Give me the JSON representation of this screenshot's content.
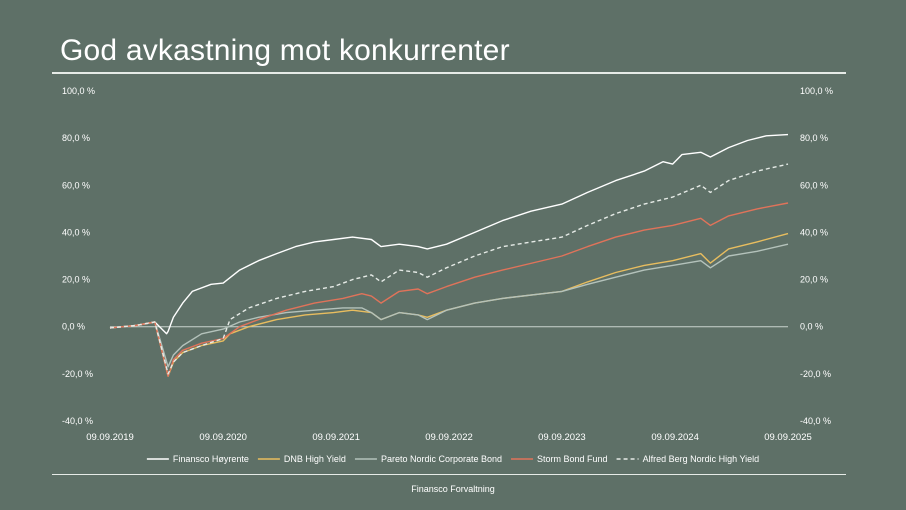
{
  "title": "God avkastning mot konkurrenter",
  "footer": "Finansco Forvaltning",
  "chart_data": {
    "type": "line",
    "title": "",
    "xlabel": "",
    "ylabel": "",
    "x_start": "09.09.2019",
    "x_end": "09.09.2025",
    "x_ticks": [
      "09.09.2019",
      "09.09.2020",
      "09.09.2021",
      "09.09.2022",
      "09.09.2023",
      "09.09.2024",
      "09.09.2025"
    ],
    "ylim": [
      -40,
      100
    ],
    "y_ticks": [
      -40,
      -20,
      0,
      20,
      40,
      60,
      80,
      100
    ],
    "y_tick_labels": [
      "-40,0 %",
      "-20,0 %",
      "0,0 %",
      "20,0 %",
      "40,0 %",
      "60,0 %",
      "80,0 %",
      "100,0 %"
    ],
    "grid": false,
    "legend_position": "bottom",
    "series": [
      {
        "name": "Finansco Høyrente",
        "color": "#ffffff",
        "dash": false,
        "points": [
          [
            "09.09.2019",
            -0.5
          ],
          [
            "01.12.2019",
            0.5
          ],
          [
            "01.02.2020",
            2
          ],
          [
            "10.03.2020",
            -3
          ],
          [
            "15.03.2020",
            -2
          ],
          [
            "01.04.2020",
            4
          ],
          [
            "01.05.2020",
            10
          ],
          [
            "01.06.2020",
            15
          ],
          [
            "01.08.2020",
            18
          ],
          [
            "09.09.2020",
            18.5
          ],
          [
            "01.11.2020",
            24
          ],
          [
            "01.01.2021",
            28
          ],
          [
            "01.03.2021",
            31
          ],
          [
            "01.05.2021",
            34
          ],
          [
            "01.07.2021",
            36
          ],
          [
            "01.09.2021",
            37
          ],
          [
            "01.11.2021",
            38
          ],
          [
            "01.01.2022",
            37
          ],
          [
            "01.02.2022",
            34
          ],
          [
            "01.04.2022",
            35
          ],
          [
            "01.06.2022",
            34
          ],
          [
            "01.07.2022",
            33
          ],
          [
            "01.09.2022",
            35
          ],
          [
            "01.12.2022",
            40
          ],
          [
            "01.03.2023",
            45
          ],
          [
            "01.06.2023",
            49
          ],
          [
            "09.09.2023",
            52
          ],
          [
            "01.12.2023",
            57
          ],
          [
            "01.03.2024",
            62
          ],
          [
            "01.06.2024",
            66
          ],
          [
            "01.08.2024",
            70
          ],
          [
            "01.09.2024",
            69
          ],
          [
            "01.10.2024",
            73
          ],
          [
            "01.12.2024",
            74
          ],
          [
            "01.01.2025",
            72
          ],
          [
            "01.03.2025",
            76
          ],
          [
            "01.05.2025",
            79
          ],
          [
            "01.07.2025",
            81
          ],
          [
            "09.09.2025",
            81.5
          ]
        ]
      },
      {
        "name": "DNB High Yield",
        "color": "#e8bd5f",
        "dash": false,
        "points": [
          [
            "09.09.2019",
            -0.5
          ],
          [
            "01.12.2019",
            0.5
          ],
          [
            "01.02.2020",
            2
          ],
          [
            "15.03.2020",
            -21
          ],
          [
            "01.04.2020",
            -15
          ],
          [
            "01.05.2020",
            -11
          ],
          [
            "01.07.2020",
            -8
          ],
          [
            "09.09.2020",
            -6
          ],
          [
            "01.10.2020",
            -3
          ],
          [
            "01.12.2020",
            0
          ],
          [
            "01.03.2021",
            3
          ],
          [
            "01.06.2021",
            5
          ],
          [
            "01.09.2021",
            6
          ],
          [
            "01.11.2021",
            7
          ],
          [
            "01.01.2022",
            6
          ],
          [
            "01.02.2022",
            3
          ],
          [
            "01.04.2022",
            6
          ],
          [
            "01.06.2022",
            5
          ],
          [
            "01.07.2022",
            4
          ],
          [
            "01.09.2022",
            7
          ],
          [
            "01.12.2022",
            10
          ],
          [
            "01.03.2023",
            12
          ],
          [
            "09.09.2023",
            15
          ],
          [
            "01.12.2023",
            19
          ],
          [
            "01.03.2024",
            23
          ],
          [
            "01.06.2024",
            26
          ],
          [
            "01.09.2024",
            28
          ],
          [
            "01.12.2024",
            31
          ],
          [
            "01.01.2025",
            27
          ],
          [
            "01.03.2025",
            33
          ],
          [
            "01.06.2025",
            36
          ],
          [
            "09.09.2025",
            39.5
          ]
        ]
      },
      {
        "name": "Pareto Nordic Corporate Bond",
        "color": "#b4c2bb",
        "dash": false,
        "points": [
          [
            "09.09.2019",
            -0.5
          ],
          [
            "01.12.2019",
            0.5
          ],
          [
            "01.02.2020",
            2
          ],
          [
            "15.03.2020",
            -17
          ],
          [
            "01.04.2020",
            -12
          ],
          [
            "01.05.2020",
            -8
          ],
          [
            "01.07.2020",
            -3
          ],
          [
            "09.09.2020",
            -1
          ],
          [
            "01.11.2020",
            2
          ],
          [
            "01.01.2021",
            4
          ],
          [
            "01.04.2021",
            6
          ],
          [
            "01.07.2021",
            7
          ],
          [
            "01.10.2021",
            8
          ],
          [
            "01.12.2021",
            8
          ],
          [
            "01.01.2022",
            6
          ],
          [
            "01.02.2022",
            3
          ],
          [
            "01.04.2022",
            6
          ],
          [
            "01.06.2022",
            5
          ],
          [
            "01.07.2022",
            3
          ],
          [
            "01.09.2022",
            7
          ],
          [
            "01.12.2022",
            10
          ],
          [
            "01.03.2023",
            12
          ],
          [
            "09.09.2023",
            15
          ],
          [
            "01.12.2023",
            18
          ],
          [
            "01.03.2024",
            21
          ],
          [
            "01.06.2024",
            24
          ],
          [
            "01.09.2024",
            26
          ],
          [
            "01.12.2024",
            28
          ],
          [
            "01.01.2025",
            25
          ],
          [
            "01.03.2025",
            30
          ],
          [
            "01.06.2025",
            32
          ],
          [
            "09.09.2025",
            35
          ]
        ]
      },
      {
        "name": "Storm Bond Fund",
        "color": "#e0735a",
        "dash": false,
        "points": [
          [
            "09.09.2019",
            -0.5
          ],
          [
            "01.12.2019",
            0.5
          ],
          [
            "01.02.2020",
            2
          ],
          [
            "15.03.2020",
            -21
          ],
          [
            "01.04.2020",
            -14
          ],
          [
            "01.05.2020",
            -10
          ],
          [
            "01.07.2020",
            -7
          ],
          [
            "09.09.2020",
            -5
          ],
          [
            "01.11.2020",
            0
          ],
          [
            "01.01.2021",
            3
          ],
          [
            "01.04.2021",
            7
          ],
          [
            "01.07.2021",
            10
          ],
          [
            "01.10.2021",
            12
          ],
          [
            "01.12.2021",
            14
          ],
          [
            "01.01.2022",
            13
          ],
          [
            "01.02.2022",
            10
          ],
          [
            "01.04.2022",
            15
          ],
          [
            "01.06.2022",
            16
          ],
          [
            "01.07.2022",
            14
          ],
          [
            "01.09.2022",
            17
          ],
          [
            "01.12.2022",
            21
          ],
          [
            "01.03.2023",
            24
          ],
          [
            "09.09.2023",
            30
          ],
          [
            "01.12.2023",
            34
          ],
          [
            "01.03.2024",
            38
          ],
          [
            "01.06.2024",
            41
          ],
          [
            "01.09.2024",
            43
          ],
          [
            "01.12.2024",
            46
          ],
          [
            "01.01.2025",
            43
          ],
          [
            "01.03.2025",
            47
          ],
          [
            "01.06.2025",
            50
          ],
          [
            "09.09.2025",
            52.5
          ]
        ]
      },
      {
        "name": "Alfred Berg Nordic High Yield",
        "color": "#e6ebe7",
        "dash": true,
        "points": [
          [
            "09.09.2019",
            -0.5
          ],
          [
            "01.12.2019",
            0.5
          ],
          [
            "01.02.2020",
            2
          ],
          [
            "15.03.2020",
            -20
          ],
          [
            "01.04.2020",
            -15
          ],
          [
            "01.05.2020",
            -11
          ],
          [
            "01.07.2020",
            -8
          ],
          [
            "09.09.2020",
            -5
          ],
          [
            "01.10.2020",
            3
          ],
          [
            "01.12.2020",
            8
          ],
          [
            "01.03.2021",
            12
          ],
          [
            "01.06.2021",
            15
          ],
          [
            "01.09.2021",
            17
          ],
          [
            "01.11.2021",
            20
          ],
          [
            "01.01.2022",
            22
          ],
          [
            "01.02.2022",
            19
          ],
          [
            "01.04.2022",
            24
          ],
          [
            "01.06.2022",
            23
          ],
          [
            "01.07.2022",
            21
          ],
          [
            "01.09.2022",
            25
          ],
          [
            "01.12.2022",
            30
          ],
          [
            "01.03.2023",
            34
          ],
          [
            "09.09.2023",
            38
          ],
          [
            "01.12.2023",
            43
          ],
          [
            "01.03.2024",
            48
          ],
          [
            "01.06.2024",
            52
          ],
          [
            "01.09.2024",
            55
          ],
          [
            "01.12.2024",
            60
          ],
          [
            "01.01.2025",
            57
          ],
          [
            "01.03.2025",
            62
          ],
          [
            "01.06.2025",
            66
          ],
          [
            "09.09.2025",
            69
          ]
        ]
      }
    ]
  }
}
